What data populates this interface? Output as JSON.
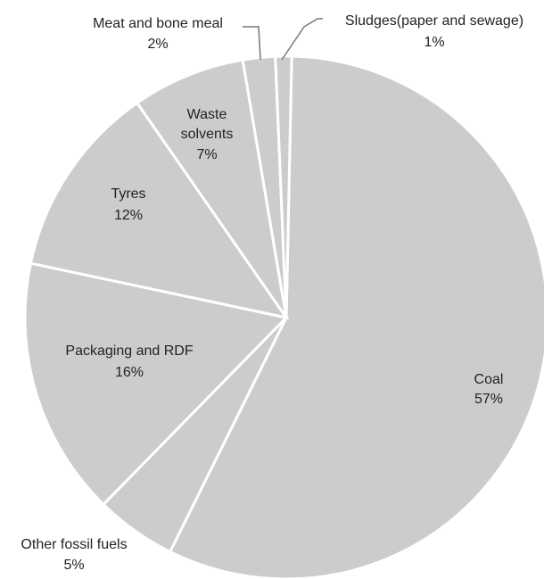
{
  "chart_data": {
    "type": "pie",
    "title": "",
    "slice_color": "#cccccc",
    "separator_color": "#ffffff",
    "slices": [
      {
        "name": "Coal",
        "value": 57,
        "label": "57%"
      },
      {
        "name": "Other fossil fuels",
        "value": 5,
        "label": "5%"
      },
      {
        "name": "Packaging and RDF",
        "value": 16,
        "label": "16%"
      },
      {
        "name": "Tyres",
        "value": 12,
        "label": "12%"
      },
      {
        "name": "Waste solvents",
        "value": 7,
        "label": "7%"
      },
      {
        "name": "Meat and bone meal",
        "value": 2,
        "label": "2%"
      },
      {
        "name": "Sludges(paper and sewage)",
        "value": 1,
        "label": "1%"
      }
    ]
  }
}
